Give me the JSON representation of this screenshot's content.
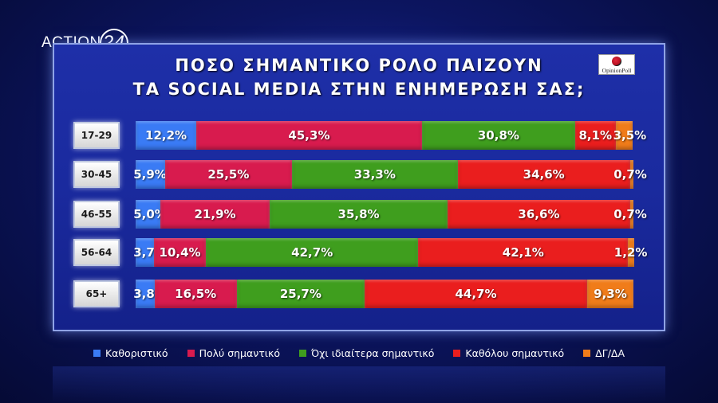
{
  "channel_logo": {
    "text": "ACTION",
    "number": "24"
  },
  "pollster_logo": {
    "text": "OpinionPoll"
  },
  "chart_data": {
    "type": "bar",
    "stacked": true,
    "orientation": "horizontal",
    "title": [
      "ΠΟΣΟ ΣΗΜΑΝΤΙΚΟ ΡΟΛΟ ΠΑΙΖΟΥΝ",
      "ΤΑ SOCIAL MEDIA ΣΤΗΝ ΕΝΗΜΕΡΩΣΗ ΣΑΣ;"
    ],
    "categories": [
      "17-29",
      "30-45",
      "46-55",
      "56-64",
      "65+"
    ],
    "series": [
      {
        "name": "Καθοριστικό",
        "color": "#3a7bf5",
        "values": [
          12.2,
          5.9,
          5.0,
          3.7,
          3.8
        ],
        "labels": [
          "12,2%",
          "5,9%",
          "5,0%",
          "3,7%",
          "3,8%"
        ]
      },
      {
        "name": "Πολύ σημαντικό",
        "color": "#d81b4e",
        "values": [
          45.3,
          25.5,
          21.9,
          10.4,
          16.5
        ],
        "labels": [
          "45,3%",
          "25,5%",
          "21,9%",
          "10,4%",
          "16,5%"
        ]
      },
      {
        "name": "Όχι ιδιαίτερα σημαντικό",
        "color": "#3f9e1e",
        "values": [
          30.8,
          33.3,
          35.8,
          42.7,
          25.7
        ],
        "labels": [
          "30,8%",
          "33,3%",
          "35,8%",
          "42,7%",
          "25,7%"
        ]
      },
      {
        "name": "Καθόλου σημαντικό",
        "color": "#ea1e1e",
        "values": [
          8.1,
          34.6,
          36.6,
          42.1,
          44.7
        ],
        "labels": [
          "8,1%",
          "34,6%",
          "36,6%",
          "42,1%",
          "44,7%"
        ]
      },
      {
        "name": "ΔΓ/ΔΑ",
        "color": "#f07c1a",
        "values": [
          3.5,
          0.7,
          0.7,
          1.2,
          9.3
        ],
        "labels": [
          "3,5%",
          "0,7%",
          "0,7%",
          "1,2%",
          "9,3%"
        ]
      }
    ],
    "xlim": [
      0,
      100
    ],
    "legend_position": "bottom"
  }
}
